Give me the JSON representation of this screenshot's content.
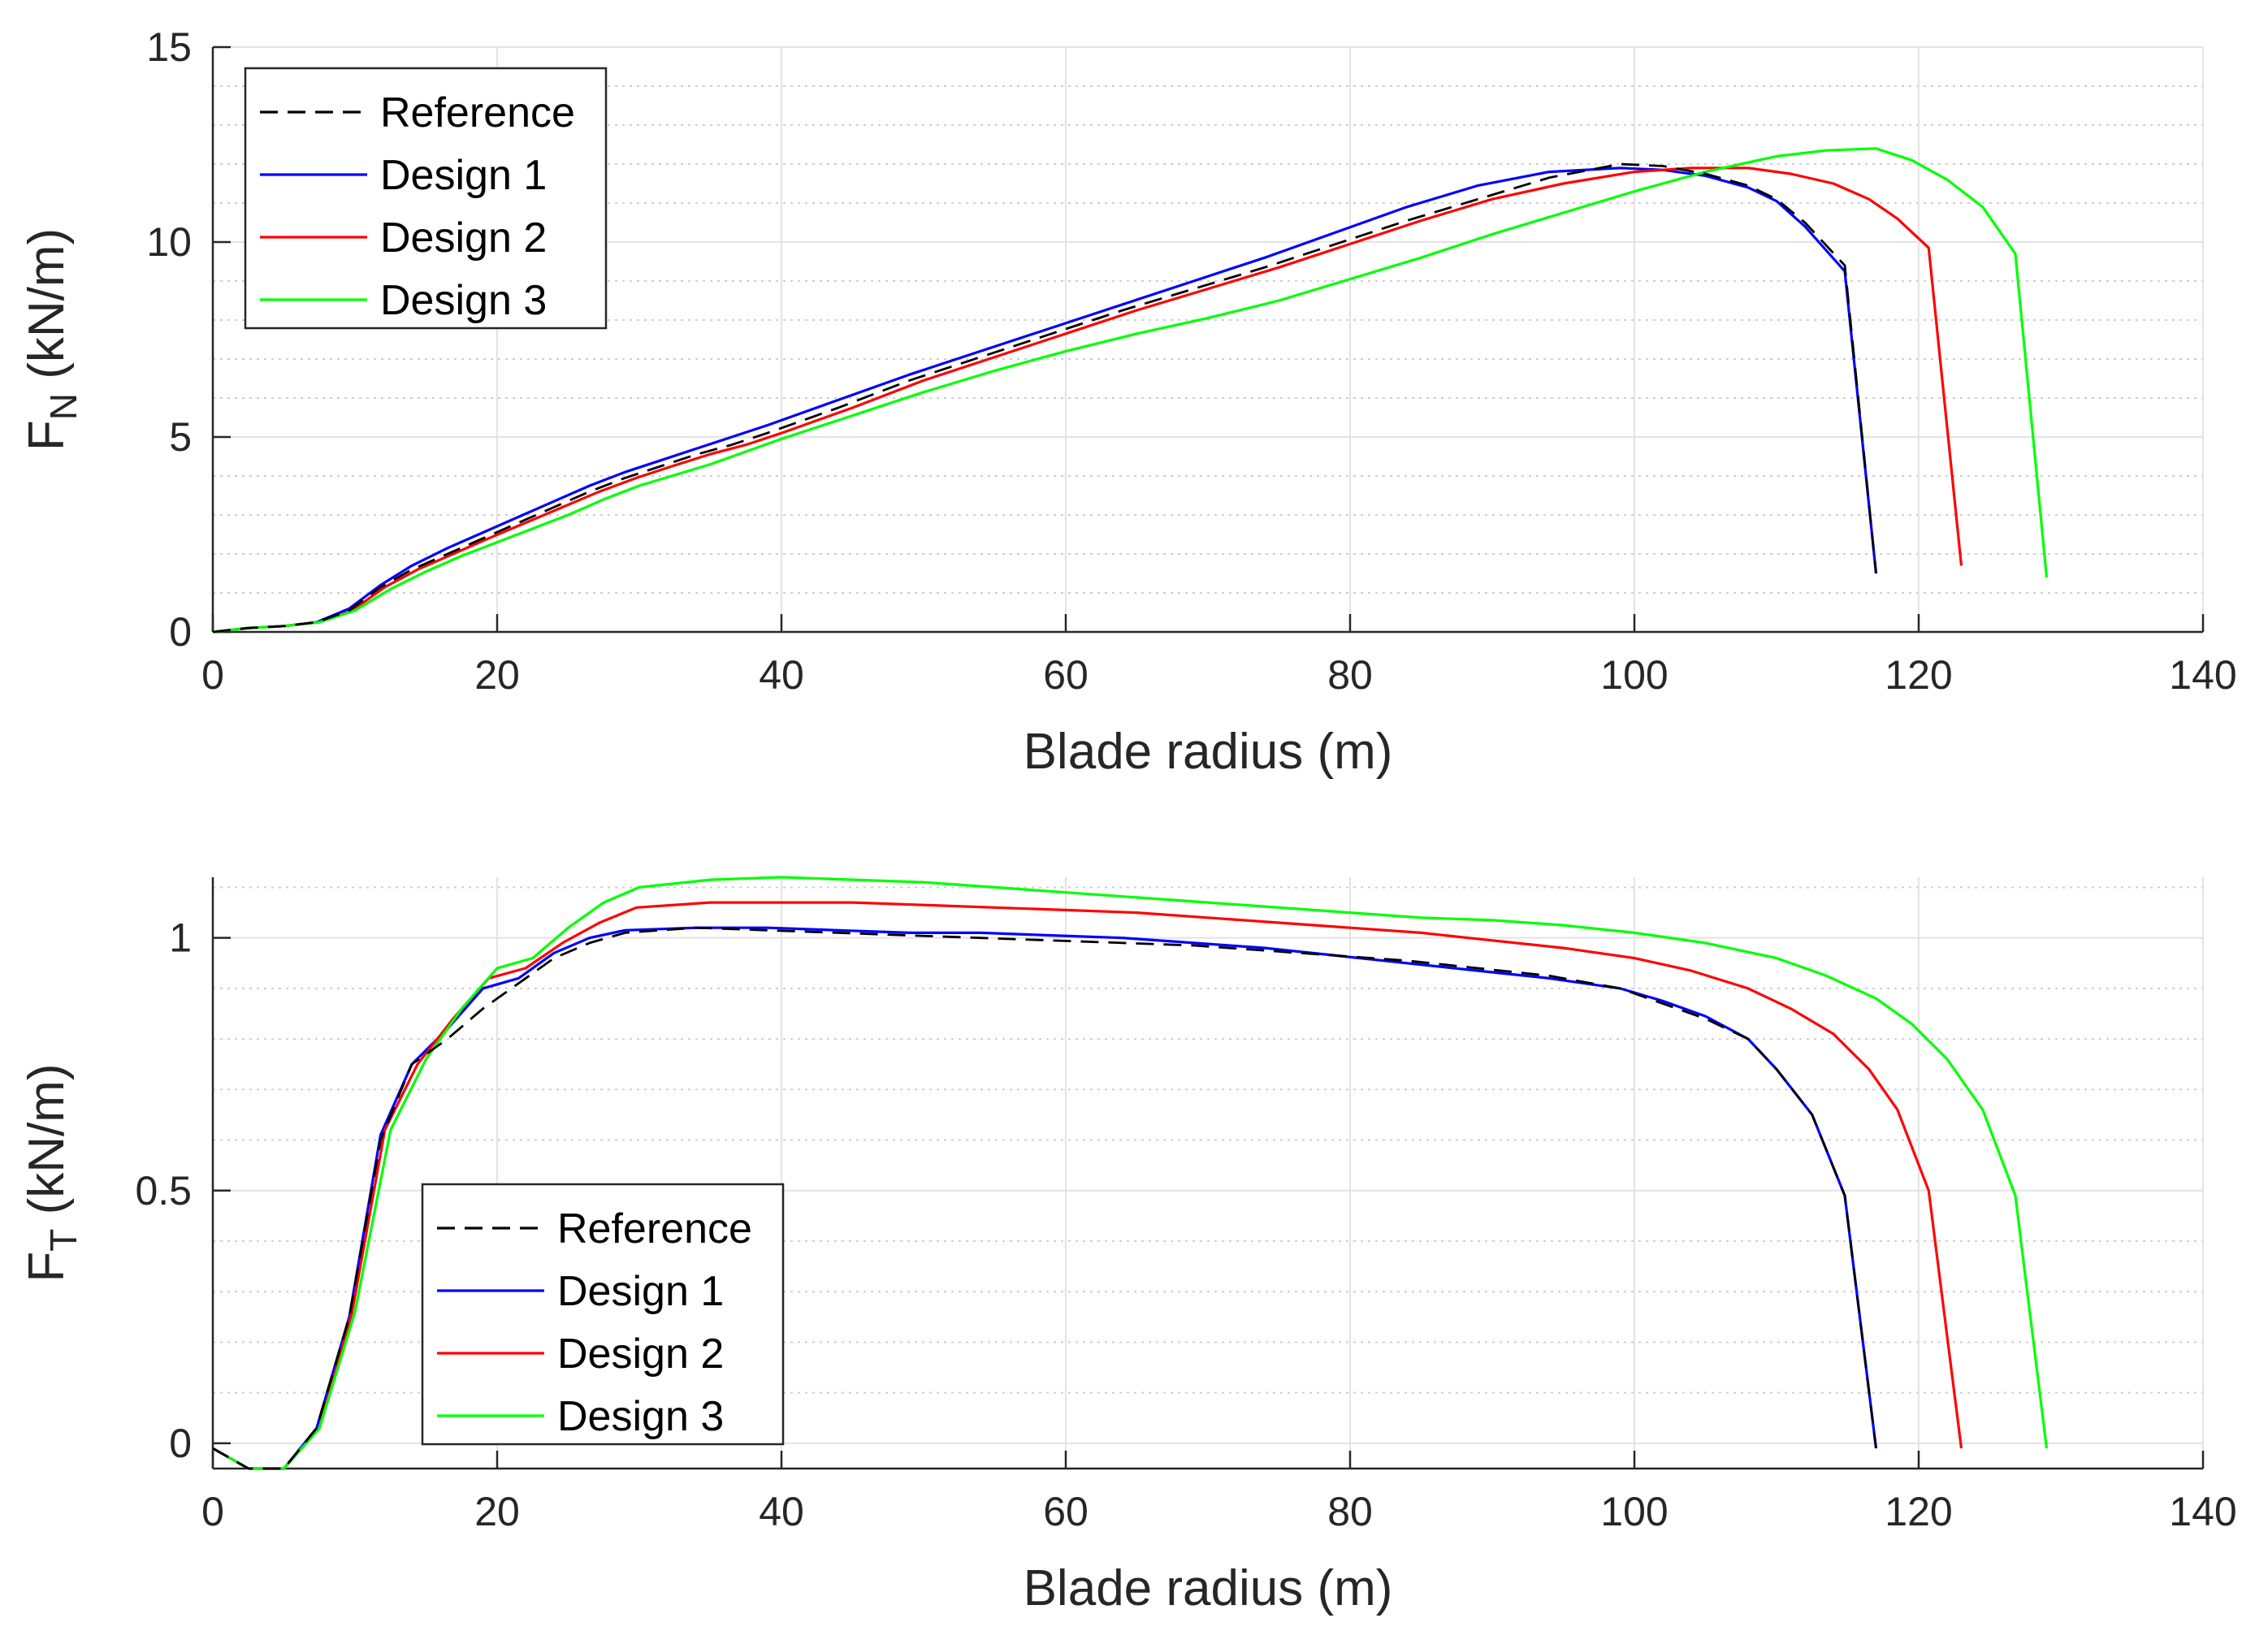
{
  "chart_data": [
    {
      "type": "line",
      "id": "normal-force",
      "xlabel": "Blade radius (m)",
      "ylabel_main": "F",
      "ylabel_sub": "N",
      "ylabel_unit": " (kN/m)",
      "xlim": [
        0,
        140
      ],
      "ylim": [
        0,
        15
      ],
      "xticks": [
        0,
        20,
        40,
        60,
        80,
        100,
        120,
        140
      ],
      "yticks": [
        0,
        5,
        10,
        15
      ],
      "yminor_step": 1,
      "grid": true,
      "legend_position": "top-left",
      "series": [
        {
          "name": "Reference",
          "color": "#000000",
          "dash": true,
          "x": [
            0,
            2.5,
            5,
            7.3,
            9.6,
            11.8,
            14,
            16.5,
            19,
            21.5,
            24,
            26.5,
            29,
            31.5,
            34,
            36.5,
            39,
            44,
            49,
            54,
            59,
            64,
            69,
            74,
            79,
            84,
            89,
            94,
            99,
            102,
            105,
            108,
            110,
            112,
            114.8,
            117
          ],
          "y": [
            0,
            0.1,
            0.15,
            0.25,
            0.55,
            1.15,
            1.6,
            2.0,
            2.4,
            2.8,
            3.2,
            3.6,
            3.95,
            4.25,
            4.55,
            4.8,
            5.1,
            5.75,
            6.45,
            7.05,
            7.65,
            8.25,
            8.8,
            9.35,
            9.95,
            10.55,
            11.1,
            11.65,
            12.0,
            11.95,
            11.75,
            11.45,
            11.1,
            10.5,
            9.4,
            1.5
          ]
        },
        {
          "name": "Design 1",
          "color": "#0000ff",
          "dash": false,
          "x": [
            0,
            2.5,
            5,
            7.3,
            9.6,
            11.8,
            14,
            16.5,
            19,
            21.5,
            24,
            26.5,
            29,
            31.5,
            34,
            36.5,
            39,
            44,
            49,
            54,
            59,
            64,
            69,
            74,
            79,
            84,
            89,
            94,
            99,
            102,
            105,
            108,
            110,
            112,
            114.8,
            117
          ],
          "y": [
            0,
            0.1,
            0.15,
            0.25,
            0.6,
            1.2,
            1.7,
            2.15,
            2.55,
            2.95,
            3.35,
            3.75,
            4.1,
            4.4,
            4.7,
            5.0,
            5.3,
            5.95,
            6.6,
            7.2,
            7.8,
            8.4,
            9.0,
            9.6,
            10.25,
            10.9,
            11.45,
            11.8,
            11.9,
            11.85,
            11.7,
            11.4,
            11.05,
            10.4,
            9.25,
            1.5
          ]
        },
        {
          "name": "Design 2",
          "color": "#ff0000",
          "dash": false,
          "x": [
            0,
            2.5,
            5,
            7.5,
            9.8,
            12.1,
            14.4,
            16.9,
            19.4,
            22,
            24.6,
            27.2,
            29.8,
            32.3,
            34.9,
            37.5,
            40,
            45,
            50,
            55,
            60,
            65,
            70,
            75,
            80,
            85,
            90,
            95,
            100,
            104,
            108,
            111,
            114,
            116.5,
            118.5,
            120.7,
            123
          ],
          "y": [
            0,
            0.1,
            0.15,
            0.25,
            0.55,
            1.15,
            1.6,
            2.0,
            2.4,
            2.8,
            3.2,
            3.6,
            3.95,
            4.25,
            4.55,
            4.8,
            5.1,
            5.75,
            6.45,
            7.05,
            7.65,
            8.25,
            8.8,
            9.35,
            9.95,
            10.55,
            11.1,
            11.5,
            11.8,
            11.9,
            11.9,
            11.75,
            11.5,
            11.1,
            10.6,
            9.85,
            1.7
          ]
        },
        {
          "name": "Design 3",
          "color": "#00ff00",
          "dash": false,
          "x": [
            0,
            2.5,
            5,
            7.5,
            10,
            12.5,
            15,
            17.5,
            20,
            22.5,
            25,
            27.5,
            30,
            35,
            40,
            45,
            50,
            55,
            60,
            65,
            70,
            75,
            80,
            85,
            90,
            95,
            100,
            105,
            110,
            113.5,
            117,
            119.5,
            122,
            124.5,
            126.8,
            129
          ],
          "y": [
            0,
            0.1,
            0.15,
            0.25,
            0.55,
            1.1,
            1.55,
            1.95,
            2.3,
            2.65,
            3.0,
            3.4,
            3.75,
            4.3,
            4.95,
            5.55,
            6.15,
            6.7,
            7.2,
            7.65,
            8.05,
            8.5,
            9.05,
            9.6,
            10.2,
            10.75,
            11.3,
            11.8,
            12.2,
            12.35,
            12.4,
            12.1,
            11.6,
            10.9,
            9.7,
            1.4
          ]
        }
      ]
    },
    {
      "type": "line",
      "id": "tangential-force",
      "xlabel": "Blade radius (m)",
      "ylabel_main": "F",
      "ylabel_sub": "T",
      "ylabel_unit": " (kN/m)",
      "xlim": [
        0,
        140
      ],
      "ylim": [
        -0.05,
        1.12
      ],
      "xticks": [
        0,
        20,
        40,
        60,
        80,
        100,
        120,
        140
      ],
      "yticks": [
        0,
        0.5,
        1
      ],
      "ytick_labels": [
        "0",
        "0.5",
        "1"
      ],
      "yminor_step": 0.1,
      "grid": true,
      "legend_position": "bottom-left",
      "series": [
        {
          "name": "Reference",
          "color": "#000000",
          "dash": true,
          "x": [
            0,
            2.5,
            5,
            7.3,
            9.6,
            11.8,
            14,
            16.5,
            19,
            21.5,
            24,
            26.5,
            29,
            34,
            39,
            44,
            49,
            54,
            59,
            64,
            69,
            74,
            79,
            84,
            89,
            94,
            99,
            102,
            105,
            108,
            110,
            112.5,
            114.8,
            117
          ],
          "y": [
            -0.01,
            -0.05,
            -0.05,
            0.03,
            0.25,
            0.6,
            0.75,
            0.8,
            0.86,
            0.91,
            0.96,
            0.99,
            1.01,
            1.02,
            1.015,
            1.01,
            1.005,
            1.0,
            0.995,
            0.99,
            0.985,
            0.975,
            0.965,
            0.955,
            0.94,
            0.925,
            0.9,
            0.87,
            0.84,
            0.8,
            0.74,
            0.65,
            0.49,
            -0.01
          ]
        },
        {
          "name": "Design 1",
          "color": "#0000ff",
          "dash": false,
          "x": [
            0,
            2.5,
            5,
            7.3,
            9.6,
            11.8,
            14,
            16.5,
            19,
            21.5,
            24,
            26.5,
            29,
            34,
            39,
            44,
            49,
            54,
            59,
            64,
            69,
            74,
            79,
            84,
            89,
            94,
            99,
            102,
            105,
            108,
            110,
            112.5,
            114.8,
            117
          ],
          "y": [
            -0.01,
            -0.05,
            -0.05,
            0.03,
            0.25,
            0.61,
            0.75,
            0.82,
            0.9,
            0.92,
            0.97,
            1.0,
            1.015,
            1.02,
            1.02,
            1.015,
            1.01,
            1.01,
            1.005,
            1.0,
            0.99,
            0.98,
            0.965,
            0.95,
            0.935,
            0.92,
            0.9,
            0.875,
            0.845,
            0.8,
            0.74,
            0.65,
            0.49,
            -0.01
          ]
        },
        {
          "name": "Design 2",
          "color": "#ff0000",
          "dash": false,
          "x": [
            0,
            2.5,
            5,
            7.5,
            9.8,
            12.1,
            14.4,
            16.9,
            19.4,
            22,
            24.6,
            27.2,
            29.8,
            35,
            40,
            45,
            50,
            55,
            60,
            65,
            70,
            75,
            80,
            85,
            90,
            95,
            100,
            104,
            108,
            111,
            114,
            116.5,
            118.5,
            120.7,
            123
          ],
          "y": [
            -0.01,
            -0.05,
            -0.05,
            0.03,
            0.26,
            0.62,
            0.75,
            0.84,
            0.92,
            0.94,
            0.99,
            1.03,
            1.06,
            1.07,
            1.07,
            1.07,
            1.065,
            1.06,
            1.055,
            1.05,
            1.04,
            1.03,
            1.02,
            1.01,
            0.995,
            0.98,
            0.96,
            0.935,
            0.9,
            0.86,
            0.81,
            0.74,
            0.66,
            0.5,
            -0.01
          ]
        },
        {
          "name": "Design 3",
          "color": "#00ff00",
          "dash": false,
          "x": [
            0,
            2.5,
            5,
            7.5,
            10,
            12.5,
            15,
            17.5,
            20,
            22.5,
            25,
            27.5,
            30,
            35,
            40,
            45,
            50,
            55,
            60,
            65,
            70,
            75,
            80,
            85,
            90,
            95,
            100,
            105,
            110,
            113.5,
            117,
            119.5,
            122,
            124.5,
            126.8,
            129
          ],
          "y": [
            -0.01,
            -0.05,
            -0.05,
            0.03,
            0.26,
            0.62,
            0.76,
            0.86,
            0.94,
            0.96,
            1.02,
            1.07,
            1.1,
            1.115,
            1.12,
            1.115,
            1.11,
            1.1,
            1.09,
            1.08,
            1.07,
            1.06,
            1.05,
            1.04,
            1.035,
            1.025,
            1.01,
            0.99,
            0.96,
            0.925,
            0.88,
            0.83,
            0.76,
            0.66,
            0.49,
            -0.01
          ]
        }
      ]
    }
  ]
}
